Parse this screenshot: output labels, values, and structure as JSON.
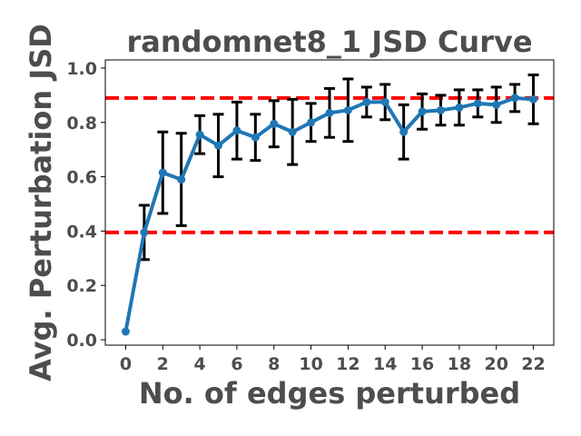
{
  "chart_data": {
    "type": "line",
    "title": "randomnet8_1 JSD Curve",
    "xlabel": "No. of edges perturbed",
    "ylabel": "Avg. Perturbation JSD",
    "xlim": [
      -1.1,
      23.1
    ],
    "ylim": [
      -0.02,
      1.03
    ],
    "xticks": [
      0,
      2,
      4,
      6,
      8,
      10,
      12,
      14,
      16,
      18,
      20,
      22
    ],
    "xtick_labels": [
      "0",
      "2",
      "4",
      "6",
      "8",
      "10",
      "12",
      "14",
      "16",
      "18",
      "20",
      "22"
    ],
    "yticks": [
      0.0,
      0.2,
      0.4,
      0.6,
      0.8,
      1.0
    ],
    "ytick_labels": [
      "0.0",
      "0.2",
      "0.4",
      "0.6",
      "0.8",
      "1.0"
    ],
    "grid": false,
    "series": [
      {
        "x": [
          0,
          1,
          2,
          3,
          4,
          5,
          6,
          7,
          8,
          9,
          10,
          11,
          12,
          13,
          14,
          15,
          16,
          17,
          18,
          19,
          20,
          21,
          22
        ],
        "y": [
          0.03,
          0.395,
          0.615,
          0.59,
          0.755,
          0.715,
          0.77,
          0.745,
          0.795,
          0.765,
          0.8,
          0.835,
          0.845,
          0.875,
          0.875,
          0.765,
          0.84,
          0.845,
          0.855,
          0.87,
          0.865,
          0.89,
          0.885
        ],
        "yerr": [
          0.0,
          0.1,
          0.15,
          0.17,
          0.07,
          0.115,
          0.105,
          0.085,
          0.085,
          0.12,
          0.07,
          0.09,
          0.115,
          0.055,
          0.065,
          0.1,
          0.065,
          0.055,
          0.065,
          0.05,
          0.065,
          0.05,
          0.09
        ],
        "color": "#1f77b4"
      }
    ],
    "hlines": [
      {
        "y": 0.89,
        "color": "#ff0000",
        "style": "dashed"
      },
      {
        "y": 0.395,
        "color": "#ff0000",
        "style": "dashed"
      }
    ],
    "errorbar_color": "#000000"
  }
}
